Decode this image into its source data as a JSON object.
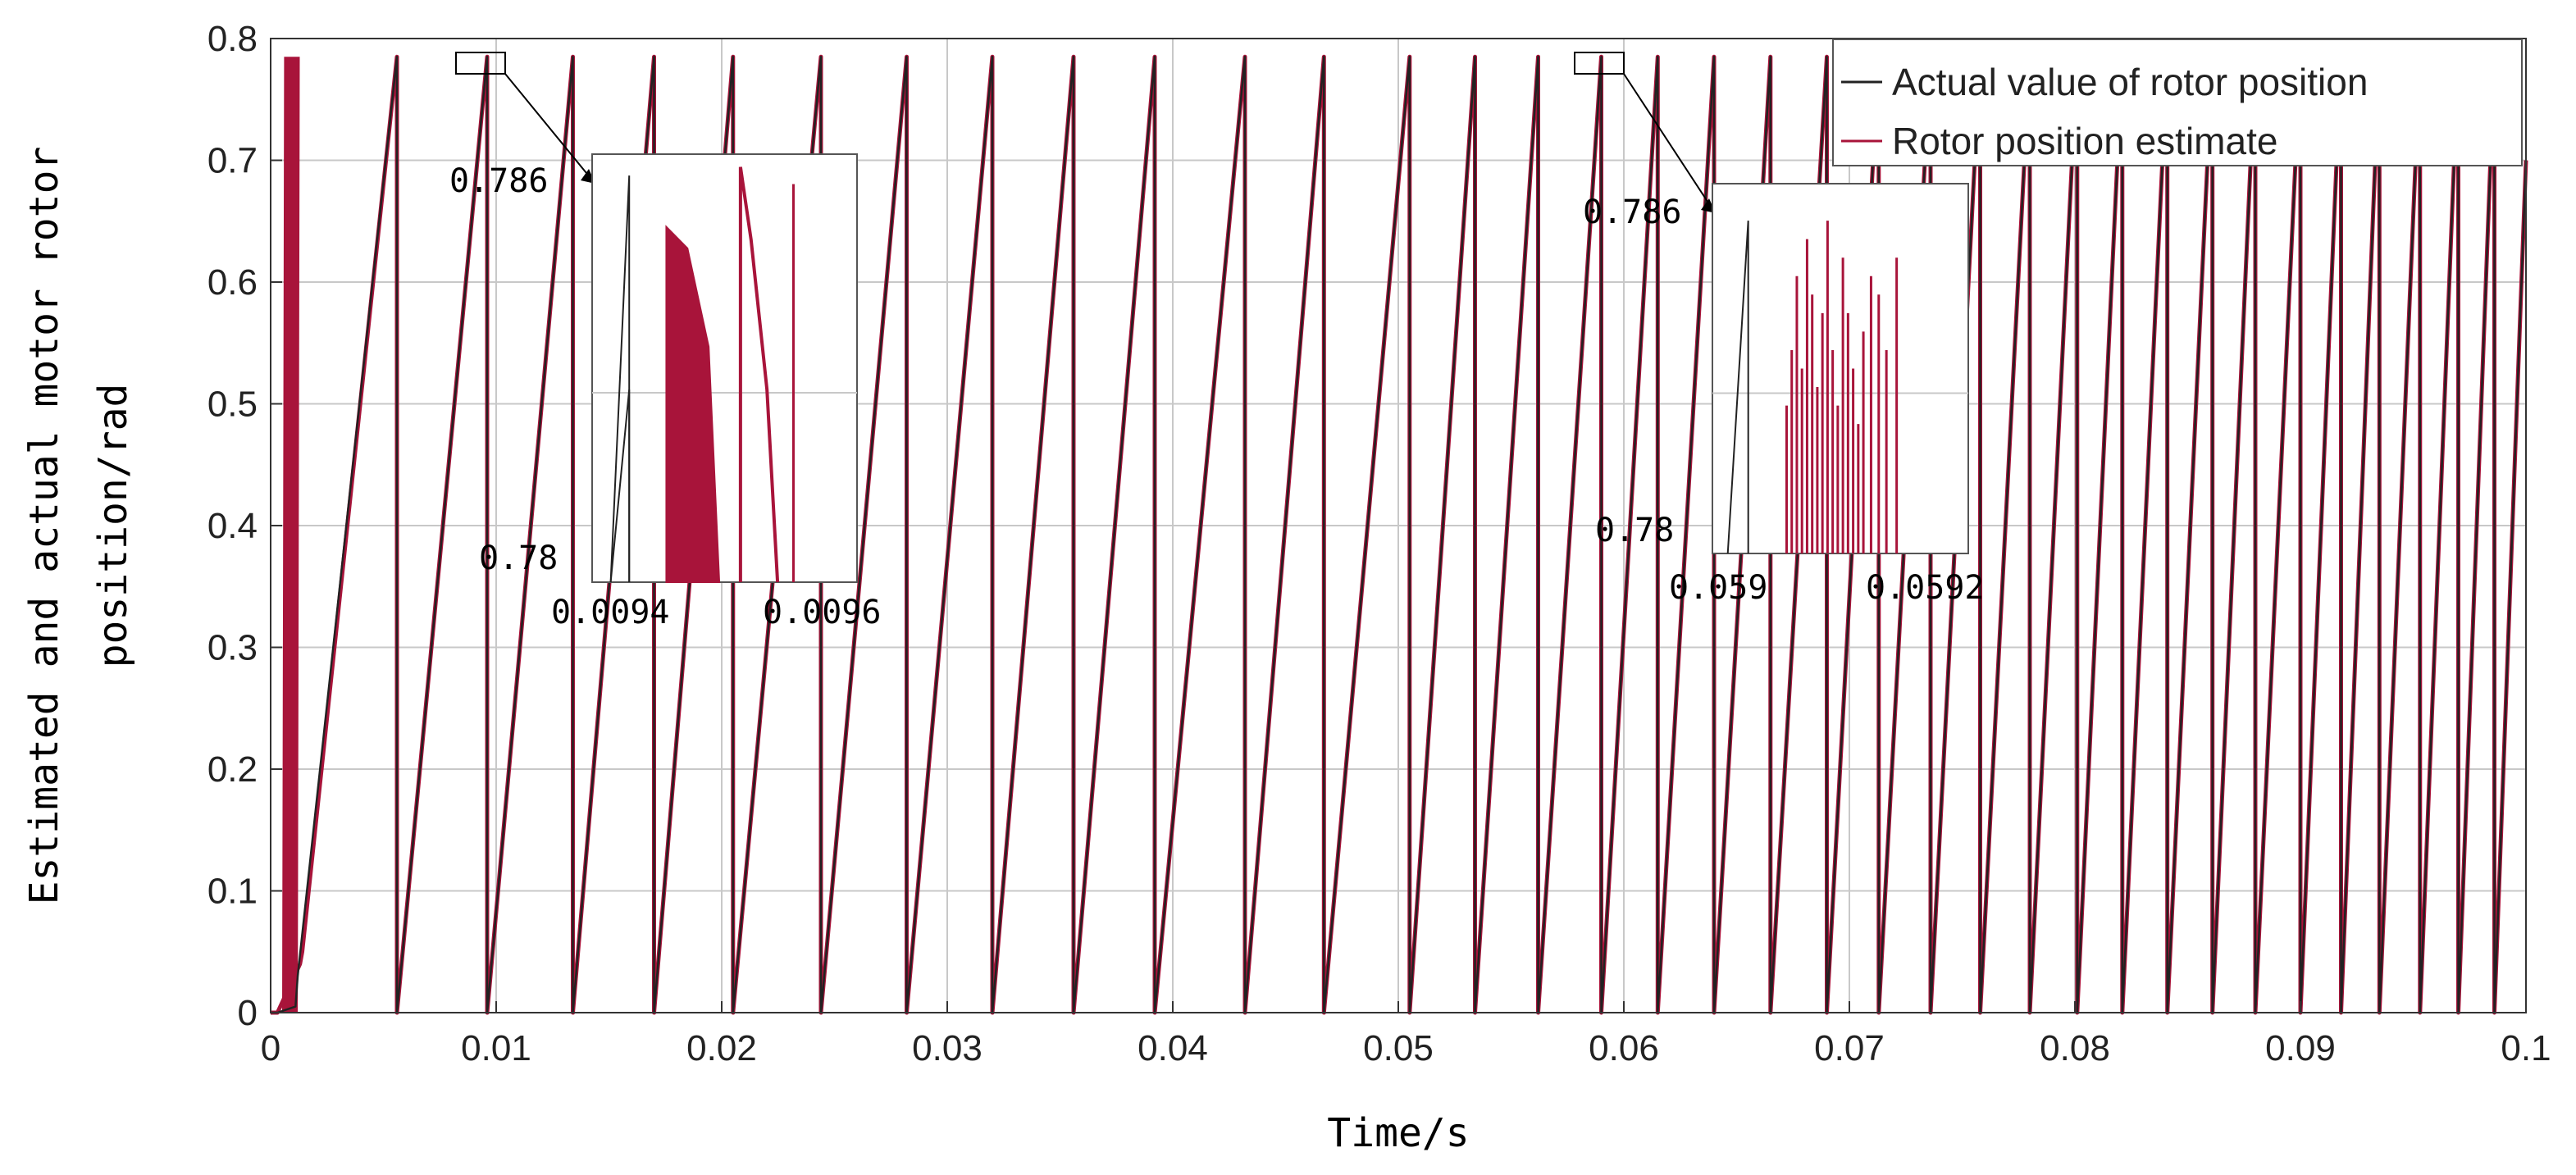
{
  "chart_data": {
    "type": "line",
    "title": "",
    "xlabel": "Time/s",
    "ylabel_lines": [
      "Estimated and actual motor rotor",
      "position/rad"
    ],
    "xlim": [
      0,
      0.1
    ],
    "ylim": [
      0,
      0.8
    ],
    "x_ticks": [
      {
        "value": 0,
        "label": "0"
      },
      {
        "value": 0.01,
        "label": "0.01"
      },
      {
        "value": 0.02,
        "label": "0.02"
      },
      {
        "value": 0.03,
        "label": "0.03"
      },
      {
        "value": 0.04,
        "label": "0.04"
      },
      {
        "value": 0.05,
        "label": "0.05"
      },
      {
        "value": 0.06,
        "label": "0.06"
      },
      {
        "value": 0.07,
        "label": "0.07"
      },
      {
        "value": 0.08,
        "label": "0.08"
      },
      {
        "value": 0.09,
        "label": "0.09"
      },
      {
        "value": 0.1,
        "label": "0.1"
      }
    ],
    "y_ticks": [
      {
        "value": 0,
        "label": "0"
      },
      {
        "value": 0.1,
        "label": "0.1"
      },
      {
        "value": 0.2,
        "label": "0.2"
      },
      {
        "value": 0.3,
        "label": "0.3"
      },
      {
        "value": 0.4,
        "label": "0.4"
      },
      {
        "value": 0.5,
        "label": "0.5"
      },
      {
        "value": 0.6,
        "label": "0.6"
      },
      {
        "value": 0.7,
        "label": "0.7"
      },
      {
        "value": 0.8,
        "label": "0.8"
      }
    ],
    "grid": true,
    "legend_placement": "top-right",
    "series": [
      {
        "name": "Actual value of rotor position",
        "color": "#222222",
        "peak": 0.785,
        "start": [
          0.0003,
          0
        ],
        "ramp_start": [
          0.0011,
          0.005
        ],
        "ramp_start_curve": [
          0.0012,
          0.03
        ],
        "reset_times": [
          0.0056,
          0.0096,
          0.0134,
          0.017,
          0.0205,
          0.0244,
          0.0282,
          0.032,
          0.0356,
          0.0392,
          0.0432,
          0.0467,
          0.0505,
          0.0534,
          0.0562,
          0.059,
          0.0615,
          0.064,
          0.0665,
          0.069,
          0.0713,
          0.0736,
          0.0758,
          0.078,
          0.0801,
          0.0821,
          0.0841,
          0.0861,
          0.088,
          0.09,
          0.0918,
          0.0935,
          0.0953,
          0.097,
          0.0986
        ],
        "end": [
          0.1,
          0.7
        ]
      },
      {
        "name": "Rotor position estimate",
        "color": "#a8143a",
        "peak": 0.785,
        "start": [
          0.0003,
          0
        ],
        "ramp_start": [
          0.0013,
          0.04
        ],
        "ramp_start_curve": [
          0.0014,
          0.05
        ],
        "startup_oscillation": {
          "x_range": [
            0.0006,
            0.0012
          ],
          "y_range": [
            0.0,
            0.785
          ]
        },
        "reset_times": [
          0.0056,
          0.0096,
          0.0134,
          0.017,
          0.0205,
          0.0244,
          0.0282,
          0.032,
          0.0356,
          0.0392,
          0.0432,
          0.0467,
          0.0505,
          0.0534,
          0.0562,
          0.059,
          0.0615,
          0.064,
          0.0665,
          0.069,
          0.0713,
          0.0736,
          0.0758,
          0.078,
          0.0801,
          0.0821,
          0.0841,
          0.0861,
          0.088,
          0.09,
          0.0918,
          0.0935,
          0.0953,
          0.097,
          0.0986
        ],
        "end": [
          0.1,
          0.7
        ]
      }
    ],
    "insets": [
      {
        "name": "zoom-1",
        "source_x": [
          0.0094,
          0.0096
        ],
        "source_y": [
          0.78,
          0.786
        ],
        "y_top_label": "0.786",
        "y_bottom_label": "0.78",
        "x_left_label": "0.0094",
        "x_right_label": "0.0096"
      },
      {
        "name": "zoom-2",
        "source_x": [
          0.059,
          0.0592
        ],
        "source_y": [
          0.78,
          0.786
        ],
        "y_top_label": "0.786",
        "y_bottom_label": "0.78",
        "x_left_label": "0.059",
        "x_right_label": "0.0592"
      }
    ]
  }
}
